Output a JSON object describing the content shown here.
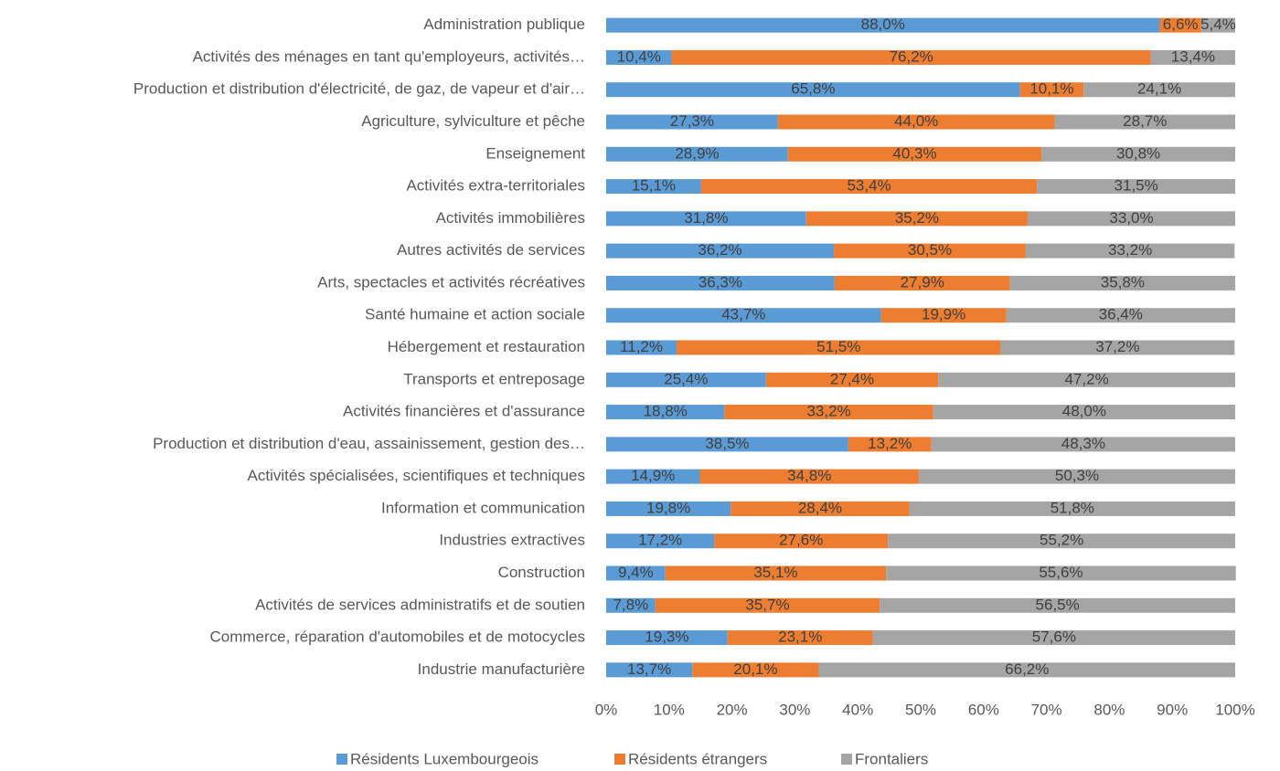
{
  "chart_data": {
    "type": "bar",
    "horizontal": true,
    "stacked": true,
    "categories": [
      "Administration publique",
      "Activités des ménages en tant qu'employeurs, activités…",
      "Production et distribution d'électricité, de gaz, de vapeur et d'air…",
      "Agriculture, sylviculture et pêche",
      "Enseignement",
      "Activités extra-territoriales",
      "Activités immobilières",
      "Autres activités de services",
      "Arts, spectacles et activités récréatives",
      "Santé humaine et action sociale",
      "Hébergement et restauration",
      "Transports et entreposage",
      "Activités financières et d'assurance",
      "Production et distribution d'eau, assainissement, gestion des…",
      "Activités spécialisées, scientifiques et techniques",
      "Information et communication",
      "Industries extractives",
      "Construction",
      "Activités de services administratifs et de soutien",
      "Commerce, réparation d'automobiles et de motocycles",
      "Industrie manufacturière"
    ],
    "series": [
      {
        "name": "Résidents Luxembourgeois",
        "color": "#5b9bd5",
        "values": [
          88.0,
          10.4,
          65.8,
          27.3,
          28.9,
          15.1,
          31.8,
          36.2,
          36.3,
          43.7,
          11.2,
          25.4,
          18.8,
          38.5,
          14.9,
          19.8,
          17.2,
          9.4,
          7.8,
          19.3,
          13.7
        ],
        "value_labels": [
          "88,0%",
          "10,4%",
          "65,8%",
          "27,3%",
          "28,9%",
          "15,1%",
          "31,8%",
          "36,2%",
          "36,3%",
          "43,7%",
          "11,2%",
          "25,4%",
          "18,8%",
          "38,5%",
          "14,9%",
          "19,8%",
          "17,2%",
          "9,4%",
          "7,8%",
          "19,3%",
          "13,7%"
        ]
      },
      {
        "name": "Résidents étrangers",
        "color": "#ed7d31",
        "values": [
          6.6,
          76.2,
          10.1,
          44.0,
          40.3,
          53.4,
          35.2,
          30.5,
          27.9,
          19.9,
          51.5,
          27.4,
          33.2,
          13.2,
          34.8,
          28.4,
          27.6,
          35.1,
          35.7,
          23.1,
          20.1
        ],
        "value_labels": [
          "6,6%",
          "76,2%",
          "10,1%",
          "44,0%",
          "40,3%",
          "53,4%",
          "35,2%",
          "30,5%",
          "27,9%",
          "19,9%",
          "51,5%",
          "27,4%",
          "33,2%",
          "13,2%",
          "34,8%",
          "28,4%",
          "27,6%",
          "35,1%",
          "35,7%",
          "23,1%",
          "20,1%"
        ]
      },
      {
        "name": "Frontaliers",
        "color": "#a5a5a5",
        "values": [
          5.4,
          13.4,
          24.1,
          28.7,
          30.8,
          31.5,
          33.0,
          33.2,
          35.8,
          36.4,
          37.2,
          47.2,
          48.0,
          48.3,
          50.3,
          51.8,
          55.2,
          55.6,
          56.5,
          57.6,
          66.2
        ],
        "value_labels": [
          "5,4%",
          "13,4%",
          "24,1%",
          "28,7%",
          "30,8%",
          "31,5%",
          "33,0%",
          "33,2%",
          "35,8%",
          "36,4%",
          "37,2%",
          "47,2%",
          "48,0%",
          "48,3%",
          "50,3%",
          "51,8%",
          "55,2%",
          "55,6%",
          "56,5%",
          "57,6%",
          "66,2%"
        ]
      }
    ],
    "xlim": [
      0,
      100
    ],
    "xticks": [
      {
        "value": 0,
        "label": "0%"
      },
      {
        "value": 10,
        "label": "10%"
      },
      {
        "value": 20,
        "label": "20%"
      },
      {
        "value": 30,
        "label": "30%"
      },
      {
        "value": 40,
        "label": "40%"
      },
      {
        "value": 50,
        "label": "50%"
      },
      {
        "value": 60,
        "label": "60%"
      },
      {
        "value": 70,
        "label": "70%"
      },
      {
        "value": 80,
        "label": "80%"
      },
      {
        "value": 90,
        "label": "90%"
      },
      {
        "value": 100,
        "label": "100%"
      }
    ],
    "legend": "bottom"
  }
}
